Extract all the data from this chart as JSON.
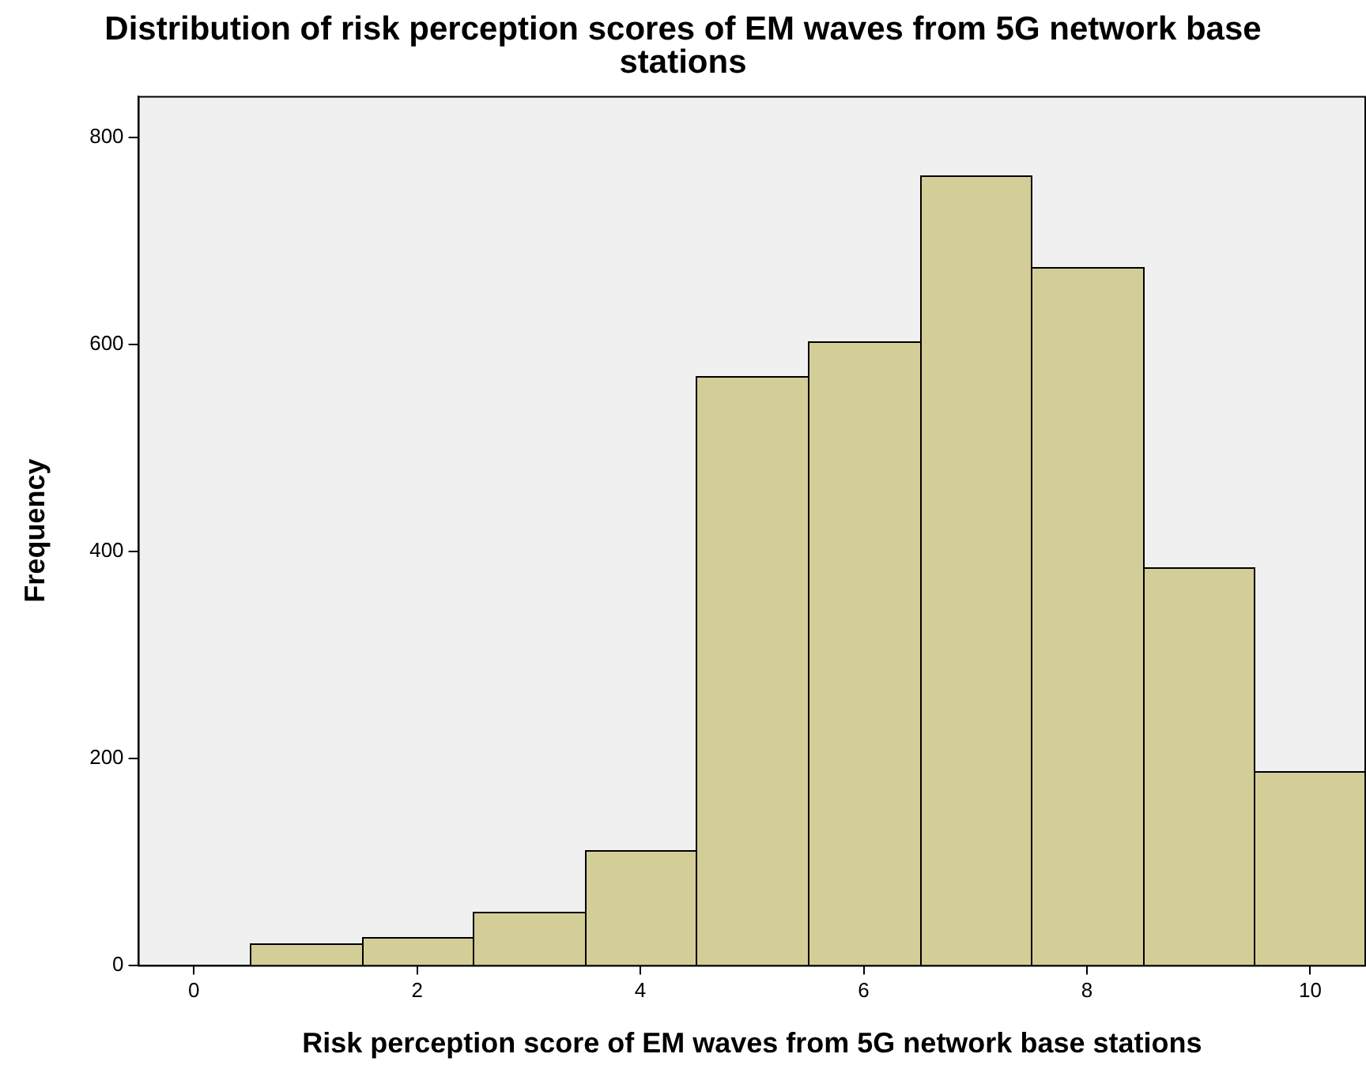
{
  "chart_data": {
    "type": "histogram",
    "title": "Distribution of risk perception scores of EM waves from 5G network base stations",
    "xlabel": "Risk perception score of EM waves from 5G network base stations",
    "ylabel": "Frequency",
    "bins": [
      0.5,
      1.5,
      2.5,
      3.5,
      4.5,
      5.5,
      6.5,
      7.5,
      8.5,
      9.5,
      10.5
    ],
    "values": [
      21,
      27,
      51,
      111,
      570,
      603,
      763,
      674,
      385,
      188
    ],
    "color": "#d3ce97",
    "xlim": [
      -0.5,
      10.5
    ],
    "xticks": [
      0,
      2,
      4,
      6,
      8,
      10
    ],
    "ylim": [
      0,
      840
    ],
    "yticks": [
      0,
      200,
      400,
      600,
      800
    ],
    "grid": false,
    "legend": false
  }
}
